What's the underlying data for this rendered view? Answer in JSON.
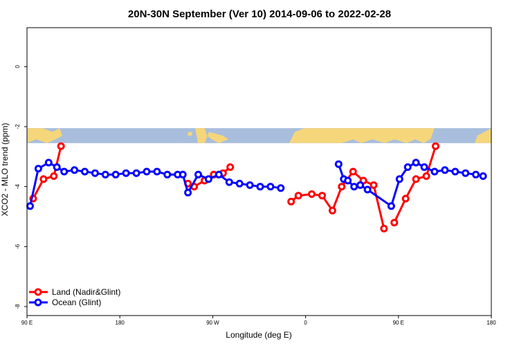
{
  "chart_data": {
    "type": "line",
    "title": "20N-30N September (Ver 10)   2014-09-06 to 2022-02-28",
    "xlabel": "Longitude (deg E)",
    "ylabel": "XCO2 - MLO trend (ppm)",
    "xlim": [
      90,
      540
    ],
    "ylim": [
      -8.3,
      1.3
    ],
    "x_ticks": [
      {
        "value": 90,
        "label": "90 E"
      },
      {
        "value": 180,
        "label": "180"
      },
      {
        "value": 270,
        "label": "90 W"
      },
      {
        "value": 360,
        "label": "0"
      },
      {
        "value": 450,
        "label": "90 E"
      },
      {
        "value": 540,
        "label": "180"
      }
    ],
    "y_ticks": [
      {
        "value": 0,
        "label": "0"
      },
      {
        "value": -2,
        "label": "-2"
      },
      {
        "value": -4,
        "label": "-4"
      },
      {
        "value": -6,
        "label": "-6"
      },
      {
        "value": -8,
        "label": "-8"
      }
    ],
    "map_strip": {
      "y_top": -2.05,
      "y_bottom": -2.55,
      "ocean_color": "#a8bedc",
      "land_color": "#f5d67a"
    },
    "legend_position": "bottom-left",
    "series": [
      {
        "name": "Land (Nadir&Glint)",
        "color": "#ff0000",
        "segments": [
          {
            "x": [
              96,
              106,
              116,
              123
            ],
            "y": [
              -4.4,
              -3.75,
              -3.65,
              -2.65
            ]
          },
          {
            "x": [
              246,
              252,
              262,
              271,
              280,
              287
            ],
            "y": [
              -3.9,
              -4.0,
              -3.8,
              -3.6,
              -3.55,
              -3.35
            ]
          },
          {
            "x": [
              346,
              353,
              366,
              376,
              386,
              395,
              406,
              416,
              426,
              436
            ],
            "y": [
              -4.5,
              -4.3,
              -4.25,
              -4.3,
              -4.8,
              -4.0,
              -3.5,
              -3.8,
              -3.95,
              -5.4
            ]
          },
          {
            "x": [
              446,
              457,
              467,
              477,
              486
            ],
            "y": [
              -5.2,
              -4.4,
              -3.75,
              -3.65,
              -2.65
            ]
          }
        ]
      },
      {
        "name": "Ocean (Glint)",
        "color": "#0000ff",
        "segments": [
          {
            "x": [
              93,
              101,
              111,
              119,
              126,
              136,
              146,
              156,
              166,
              176,
              186,
              196,
              206,
              216,
              226,
              236,
              241,
              246,
              256,
              266,
              276,
              286,
              296,
              306,
              316,
              326,
              336
            ],
            "y": [
              -4.65,
              -3.4,
              -3.2,
              -3.35,
              -3.5,
              -3.45,
              -3.5,
              -3.55,
              -3.6,
              -3.6,
              -3.55,
              -3.55,
              -3.5,
              -3.5,
              -3.6,
              -3.6,
              -3.6,
              -4.2,
              -3.6,
              -3.75,
              -3.6,
              -3.85,
              -3.9,
              -3.95,
              -4.0,
              -4.0,
              -4.05
            ]
          },
          {
            "x": [
              392,
              397,
              401,
              407,
              413,
              420,
              443,
              451,
              459,
              467,
              475,
              485,
              495,
              505,
              515,
              525,
              532
            ],
            "y": [
              -3.25,
              -3.75,
              -3.8,
              -4.0,
              -3.95,
              -4.1,
              -4.65,
              -3.75,
              -3.35,
              -3.2,
              -3.35,
              -3.5,
              -3.45,
              -3.5,
              -3.55,
              -3.6,
              -3.65
            ]
          }
        ]
      }
    ]
  }
}
